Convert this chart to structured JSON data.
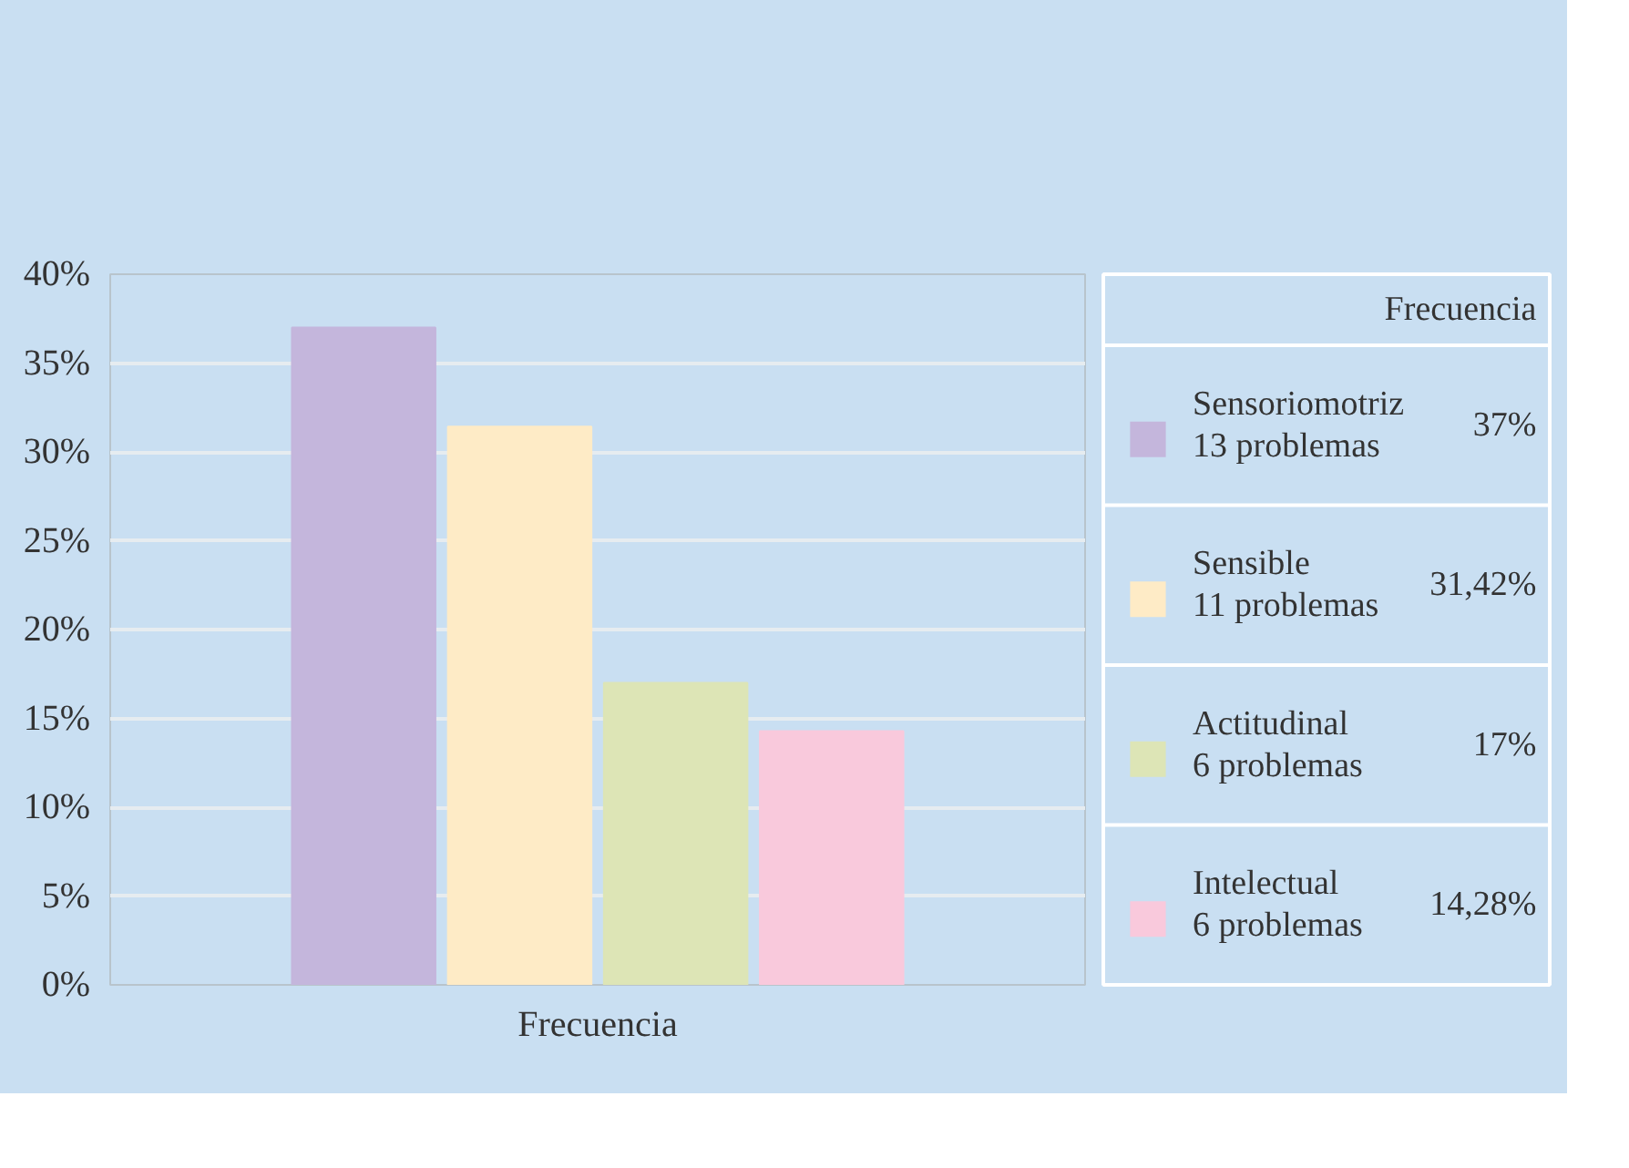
{
  "chart_data": {
    "type": "bar",
    "categories": [
      "Frecuencia"
    ],
    "legend_title": "Frecuencia",
    "series": [
      {
        "name": "Sensoriomotriz\n13 problemas",
        "color": "#c4b6dc",
        "values": [
          37
        ]
      },
      {
        "name": "Sensible\n11 problemas",
        "color": "#feebc6",
        "values": [
          31.42
        ]
      },
      {
        "name": "Actitudinal\n6 problemas",
        "color": "#dde5b6",
        "values": [
          17
        ]
      },
      {
        "name": "Intelectual\n6 problemas",
        "color": "#f9c9dc",
        "values": [
          14.28
        ]
      }
    ],
    "annotations": [
      "37%",
      "31,42%",
      "17%",
      "14,28%"
    ],
    "ylim": [
      0,
      40
    ],
    "yticks": [
      {
        "value": 0,
        "label": "0%"
      },
      {
        "value": 5,
        "label": "5%"
      },
      {
        "value": 10,
        "label": "10%"
      },
      {
        "value": 15,
        "label": "15%"
      },
      {
        "value": 20,
        "label": "20%"
      },
      {
        "value": 25,
        "label": "25%"
      },
      {
        "value": 30,
        "label": "30%"
      },
      {
        "value": 35,
        "label": "35%"
      },
      {
        "value": 40,
        "label": "40%"
      }
    ],
    "grid": "y",
    "legend": "right"
  }
}
